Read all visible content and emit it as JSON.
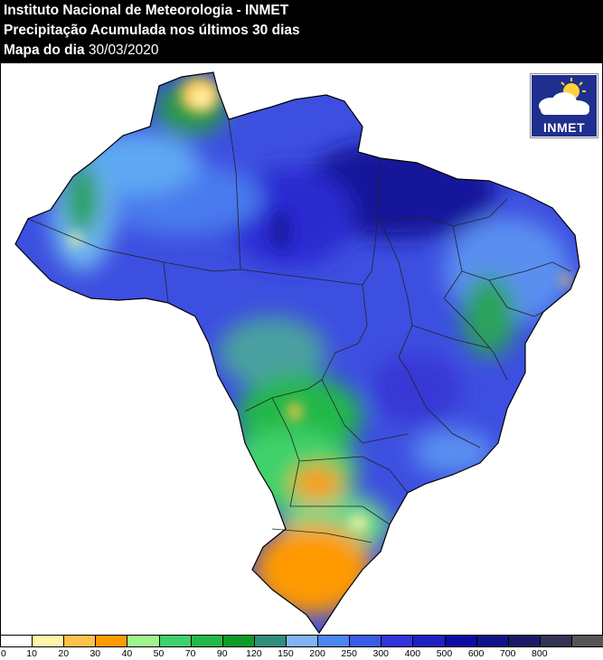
{
  "header": {
    "title": "Instituto Nacional de Meteorologia - INMET",
    "subtitle": "Precipitação Acumulada nos últimos 30 dias",
    "date_label": "Mapa do dia",
    "date_value": "30/03/2020"
  },
  "logo": {
    "text": "INMET",
    "icon": "sun-cloud-icon"
  },
  "legend": {
    "colors": [
      "#ffffff",
      "#fff5a8",
      "#ffc24a",
      "#ff9a00",
      "#9ef58e",
      "#3fd26b",
      "#22b84a",
      "#0f9a2a",
      "#2f8f7c",
      "#7fb5f5",
      "#4d86f0",
      "#3a5be6",
      "#3333d9",
      "#1f1fc4",
      "#0c0ca3",
      "#111188",
      "#1a1a66",
      "#333355",
      "#555555"
    ],
    "labels": [
      "0",
      "10",
      "20",
      "30",
      "40",
      "50",
      "70",
      "90",
      "120",
      "150",
      "200",
      "250",
      "300",
      "400",
      "500",
      "600",
      "700",
      "800"
    ]
  }
}
